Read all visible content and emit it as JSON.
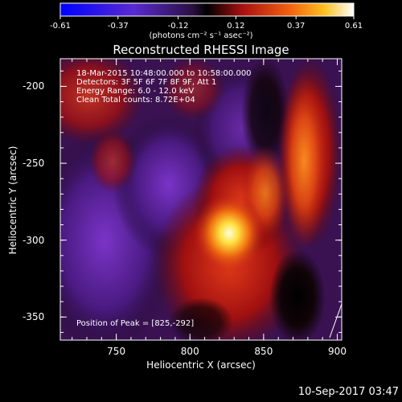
{
  "colorbar": {
    "ticks": [
      "-0.61",
      "-0.37",
      "-0.12",
      "0.12",
      "0.37",
      "0.61"
    ],
    "units": "(photons cm⁻² s⁻¹ asec⁻²)"
  },
  "title": "Reconstructed RHESSI Image",
  "info": {
    "line1": "18-Mar-2015 10:48:00.000 to 10:58:00.000",
    "line2": "Detectors: 3F 5F 6F 7F 8F 9F, Att 1",
    "line3": "Energy Range: 6.0 - 12.0 keV",
    "line4": "Clean    Total counts: 8.72E+04"
  },
  "peak_text": "Position of Peak = [825,-292]",
  "timestamp": "10-Sep-2017 03:47",
  "chart_data": {
    "type": "heatmap",
    "title": "Reconstructed RHESSI Image",
    "xlabel": "Heliocentric X (arcsec)",
    "ylabel": "Heliocentric Y (arcsec)",
    "xlim": [
      712,
      903
    ],
    "ylim": [
      -365,
      -182
    ],
    "x_ticks": [
      "750",
      "800",
      "850",
      "900"
    ],
    "y_ticks": [
      "-200",
      "-250",
      "-300",
      "-350"
    ],
    "x_tick_values": [
      750,
      800,
      850,
      900
    ],
    "y_tick_values": [
      -200,
      -250,
      -300,
      -350
    ],
    "color_range": [
      -0.61,
      0.61
    ],
    "peak": [
      825,
      -292
    ],
    "colors": {
      "negative": "#6a28b8",
      "zero": "#000000",
      "mid": "#c8201a",
      "high": "#ffb020",
      "peak": "#ffffd0"
    }
  }
}
